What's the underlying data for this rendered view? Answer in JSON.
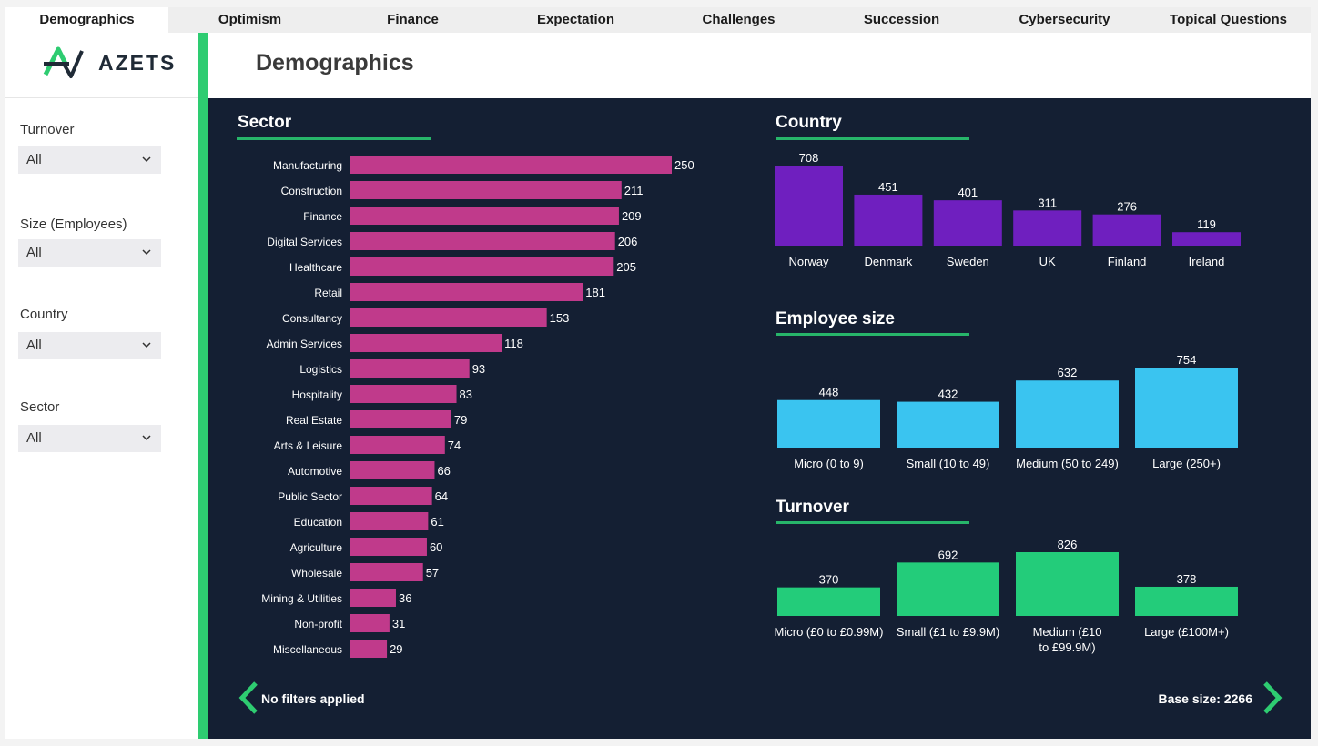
{
  "tabs": [
    {
      "label": "Demographics",
      "active": true
    },
    {
      "label": "Optimism"
    },
    {
      "label": "Finance"
    },
    {
      "label": "Expectation"
    },
    {
      "label": "Challenges"
    },
    {
      "label": "Succession"
    },
    {
      "label": "Cybersecurity"
    },
    {
      "label": "Topical Questions"
    }
  ],
  "logo": {
    "text": "AZETS"
  },
  "filters": [
    {
      "label": "Turnover",
      "value": "All"
    },
    {
      "label": "Size (Employees)",
      "value": "All"
    },
    {
      "label": "Country",
      "value": "All"
    },
    {
      "label": "Sector",
      "value": "All"
    }
  ],
  "page_title": "Demographics",
  "footer": {
    "left": "No filters applied",
    "right": "Base size: 2266"
  },
  "colors": {
    "sector": "#c03a8b",
    "country": "#6f1fbf",
    "employee": "#3ac4f0",
    "turnover": "#23cc7a",
    "rule": "#27b56a",
    "background": "#141f33"
  },
  "chart_data": [
    {
      "type": "bar",
      "title": "Sector",
      "orientation": "horizontal",
      "categories": [
        "Manufacturing",
        "Construction",
        "Finance",
        "Digital Services",
        "Healthcare",
        "Retail",
        "Consultancy",
        "Admin Services",
        "Logistics",
        "Hospitality",
        "Real Estate",
        "Arts & Leisure",
        "Automotive",
        "Public Sector",
        "Education",
        "Agriculture",
        "Wholesale",
        "Mining & Utilities",
        "Non-profit",
        "Miscellaneous"
      ],
      "values": [
        250,
        211,
        209,
        206,
        205,
        181,
        153,
        118,
        93,
        83,
        79,
        74,
        66,
        64,
        61,
        60,
        57,
        36,
        31,
        29
      ],
      "xlim": [
        0,
        250
      ]
    },
    {
      "type": "bar",
      "title": "Country",
      "categories": [
        "Norway",
        "Denmark",
        "Sweden",
        "UK",
        "Finland",
        "Ireland"
      ],
      "values": [
        708,
        451,
        401,
        311,
        276,
        119
      ],
      "ylim": [
        0,
        708
      ]
    },
    {
      "type": "bar",
      "title": "Employee size",
      "categories": [
        "Micro (0 to 9)",
        "Small (10 to 49)",
        "Medium (50 to 249)",
        "Large (250+)"
      ],
      "values": [
        448,
        432,
        632,
        754
      ],
      "ylim": [
        0,
        754
      ]
    },
    {
      "type": "bar",
      "title": "Turnover",
      "categories": [
        "Micro (£0 to £0.99M)",
        "Small (£1 to £9.9M)",
        "Medium (£10 to £99.9M)",
        "Large (£100M+)"
      ],
      "values": [
        370,
        692,
        826,
        378
      ],
      "ylim": [
        0,
        826
      ]
    }
  ]
}
